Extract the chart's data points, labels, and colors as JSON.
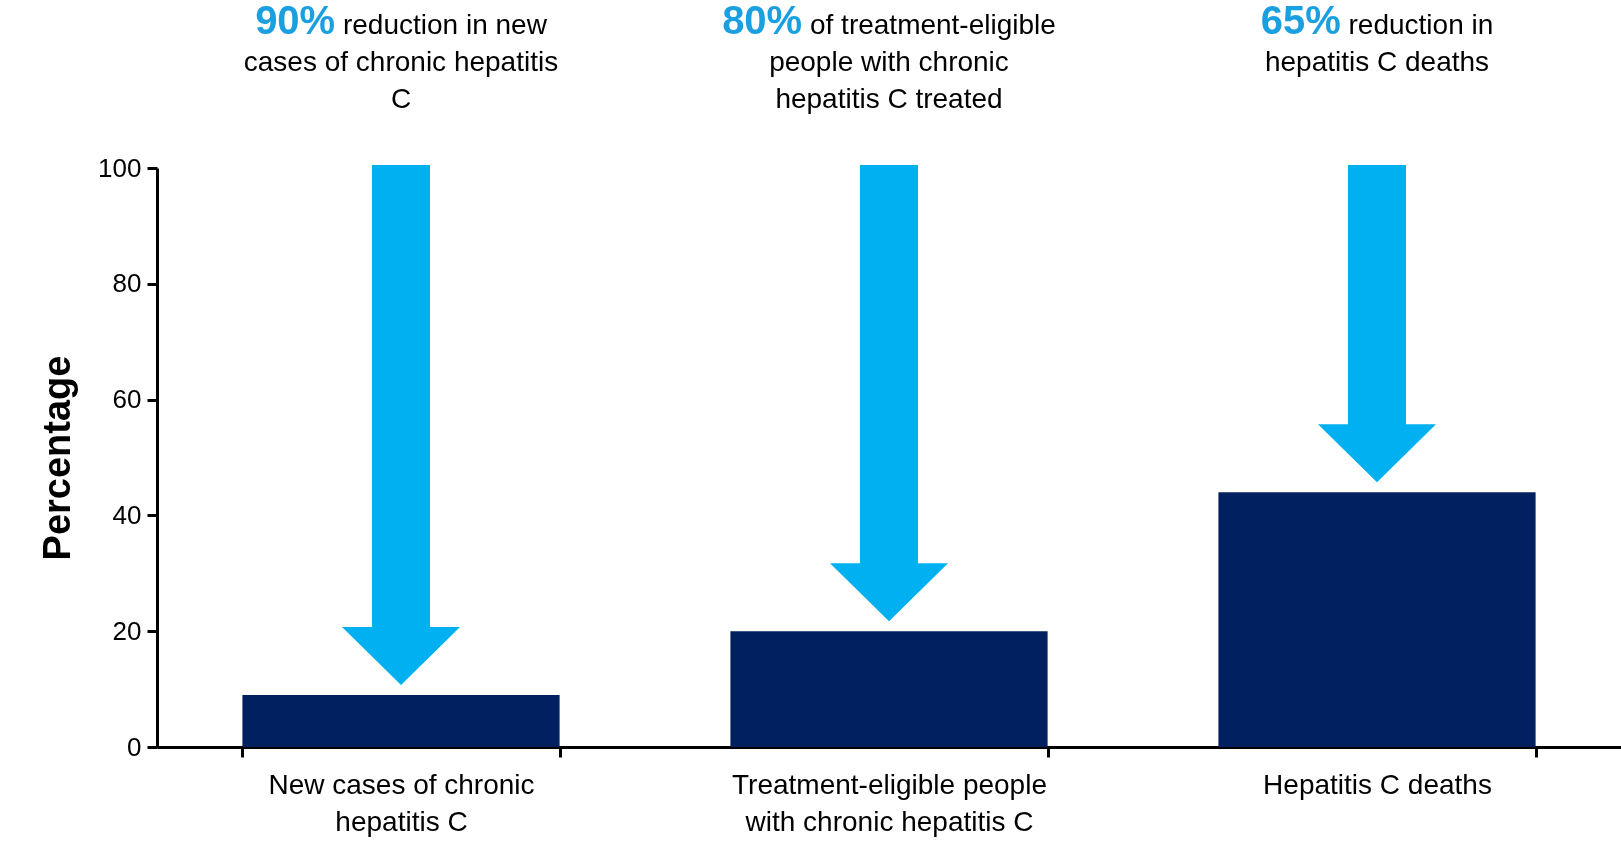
{
  "chart_data": {
    "type": "bar",
    "ylabel": "Percentage",
    "categories": [
      "New cases of chronic hepatitis C",
      "Treatment-eligible people with chronic hepatitis C",
      "Hepatitis C deaths"
    ],
    "values": [
      9,
      20,
      44
    ],
    "color": "#002060",
    "ylim": [
      0,
      100
    ],
    "yticks": [
      0,
      20,
      40,
      60,
      80,
      100
    ],
    "annotations": [
      "90% reduction in new cases of chronic hepatitis C",
      "80% of treatment-eligible people with chronic hepatitis C treated",
      "65% reduction in hepatitis C deaths"
    ]
  }
}
